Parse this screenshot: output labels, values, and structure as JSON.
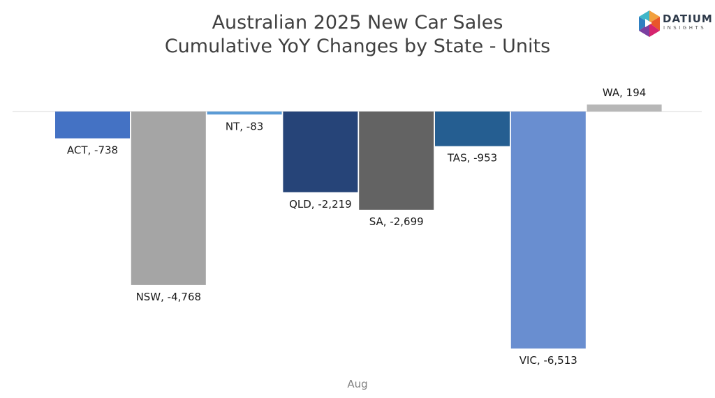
{
  "chart_data": {
    "type": "bar",
    "title": [
      "Australian 2025 New Car Sales",
      "Cumulative YoY Changes by State - Units"
    ],
    "category_axis_label": "Aug",
    "grid": false,
    "legend": "none",
    "series": [
      {
        "label": "ACT",
        "value": -738,
        "value_label": "-738",
        "color": "#4472c4"
      },
      {
        "label": "NSW",
        "value": -4768,
        "value_label": "-4,768",
        "color": "#a5a5a5"
      },
      {
        "label": "NT",
        "value": -83,
        "value_label": "-83",
        "color": "#5b9bd5"
      },
      {
        "label": "QLD",
        "value": -2219,
        "value_label": "-2,219",
        "color": "#264478"
      },
      {
        "label": "SA",
        "value": -2699,
        "value_label": "-2,699",
        "color": "#636363"
      },
      {
        "label": "TAS",
        "value": -953,
        "value_label": "-953",
        "color": "#255e91"
      },
      {
        "label": "VIC",
        "value": -6513,
        "value_label": "-6,513",
        "color": "#698ed0"
      },
      {
        "label": "WA",
        "value": 194,
        "value_label": "194",
        "color": "#b7b7b7"
      }
    ]
  },
  "logo": {
    "word": "DATIUM",
    "sub": "INSIGHTS"
  }
}
